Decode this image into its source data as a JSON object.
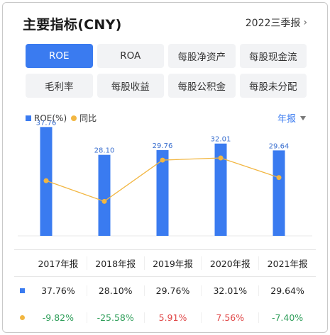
{
  "header": {
    "title": "主要指标(CNY)",
    "period_label": "2022三季报",
    "chevron": "›"
  },
  "tabs": [
    {
      "label": "ROE",
      "active": true
    },
    {
      "label": "ROA",
      "active": false
    },
    {
      "label": "每股净资产",
      "active": false
    },
    {
      "label": "每股现金流",
      "active": false
    },
    {
      "label": "毛利率",
      "active": false
    },
    {
      "label": "每股收益",
      "active": false
    },
    {
      "label": "每股公积金",
      "active": false
    },
    {
      "label": "每股未分配",
      "active": false
    }
  ],
  "legend": {
    "bar_label": "ROE(%)",
    "line_label": "同比"
  },
  "frequency_selector": "年报",
  "colors": {
    "accent": "#3a7bf0",
    "line": "#f2b641",
    "positive": "#e04848",
    "negative": "#2f9e5a"
  },
  "chart_data": {
    "type": "bar",
    "categories": [
      "2017年报",
      "2018年报",
      "2019年报",
      "2020年报",
      "2021年报"
    ],
    "series": [
      {
        "name": "ROE(%)",
        "type": "bar",
        "values": [
          37.76,
          28.1,
          29.76,
          32.01,
          29.64
        ]
      },
      {
        "name": "同比",
        "type": "line",
        "values": [
          -9.82,
          -25.58,
          5.91,
          7.56,
          -7.4
        ]
      }
    ],
    "bar_labels": [
      "37.76",
      "28.10",
      "29.76",
      "32.01",
      "29.64"
    ]
  },
  "table": {
    "headers": [
      "2017年报",
      "2018年报",
      "2019年报",
      "2020年报",
      "2021年报"
    ],
    "roe_row": [
      "37.76%",
      "28.10%",
      "29.76%",
      "32.01%",
      "29.64%"
    ],
    "yoy_row": [
      "-9.82%",
      "-25.58%",
      "5.91%",
      "7.56%",
      "-7.40%"
    ]
  }
}
